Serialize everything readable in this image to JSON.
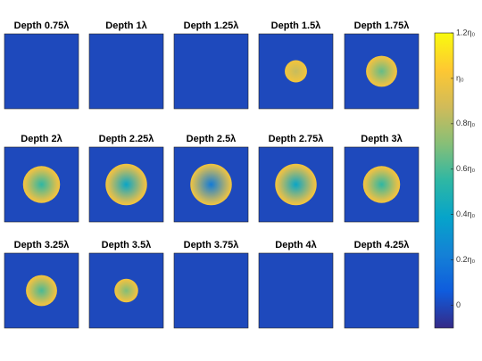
{
  "chart_data": {
    "type": "image-grid",
    "background_value": 0,
    "panels": [
      {
        "title": "Depth 0.75λ"
      },
      {
        "title": "Depth 1λ"
      },
      {
        "title": "Depth 1.25λ"
      },
      {
        "title": "Depth 1.5λ",
        "disk": {
          "radius": 0.15,
          "center_value": 0.85,
          "edge_value": 1.0
        }
      },
      {
        "title": "Depth 1.75λ",
        "disk": {
          "radius": 0.21,
          "center_value": 0.65,
          "edge_value": 1.0
        }
      },
      {
        "title": "Depth 2λ",
        "disk": {
          "radius": 0.25,
          "center_value": 0.55,
          "edge_value": 1.0
        }
      },
      {
        "title": "Depth 2.25λ",
        "disk": {
          "radius": 0.28,
          "center_value": 0.4,
          "edge_value": 1.0
        }
      },
      {
        "title": "Depth 2.5λ",
        "disk": {
          "radius": 0.28,
          "center_value": 0.2,
          "edge_value": 1.0
        }
      },
      {
        "title": "Depth 2.75λ",
        "disk": {
          "radius": 0.28,
          "center_value": 0.4,
          "edge_value": 1.0
        }
      },
      {
        "title": "Depth 3λ",
        "disk": {
          "radius": 0.25,
          "center_value": 0.55,
          "edge_value": 1.0
        }
      },
      {
        "title": "Depth 3.25λ",
        "disk": {
          "radius": 0.21,
          "center_value": 0.6,
          "edge_value": 1.0
        }
      },
      {
        "title": "Depth 3.5λ",
        "disk": {
          "radius": 0.16,
          "center_value": 0.7,
          "edge_value": 1.0
        }
      },
      {
        "title": "Depth 3.75λ"
      },
      {
        "title": "Depth 4λ"
      },
      {
        "title": "Depth 4.25λ"
      }
    ],
    "colorbar": {
      "ylim": [
        -0.1,
        1.2
      ],
      "yticks": [
        0,
        {
          "value": 0.2,
          "label": "0.2η₀"
        },
        {
          "value": 0.4,
          "label": "0.4η₀"
        },
        {
          "value": 0.6,
          "label": "0.6η₀"
        },
        {
          "value": 0.8,
          "label": "0.8η₀"
        },
        {
          "value": 1,
          "label": "η₀"
        },
        {
          "value": 1.2,
          "label": "1.2η₀"
        }
      ]
    }
  }
}
